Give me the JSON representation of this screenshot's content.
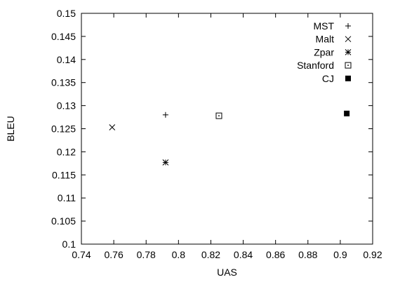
{
  "chart_data": {
    "type": "scatter",
    "title": "",
    "xlabel": "UAS",
    "ylabel": "BLEU",
    "xlim": [
      0.74,
      0.92
    ],
    "ylim": [
      0.1,
      0.15
    ],
    "xticks": [
      "0.74",
      "0.76",
      "0.78",
      "0.8",
      "0.82",
      "0.84",
      "0.86",
      "0.88",
      "0.9",
      "0.92"
    ],
    "yticks": [
      "0.1",
      "0.105",
      "0.11",
      "0.115",
      "0.12",
      "0.125",
      "0.13",
      "0.135",
      "0.14",
      "0.145",
      "0.15"
    ],
    "grid": false,
    "legend_position": "top-right",
    "series": [
      {
        "name": "MST",
        "marker": "plus",
        "points": [
          [
            0.792,
            0.128
          ]
        ]
      },
      {
        "name": "Malt",
        "marker": "cross",
        "points": [
          [
            0.759,
            0.1253
          ]
        ]
      },
      {
        "name": "Zpar",
        "marker": "star",
        "points": [
          [
            0.792,
            0.1177
          ]
        ]
      },
      {
        "name": "Stanford",
        "marker": "dotted-square",
        "points": [
          [
            0.825,
            0.1278
          ]
        ]
      },
      {
        "name": "CJ",
        "marker": "filled-square",
        "points": [
          [
            0.904,
            0.1283
          ]
        ]
      }
    ]
  }
}
